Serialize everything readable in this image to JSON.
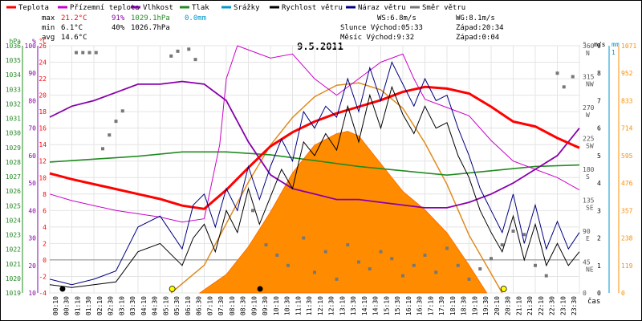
{
  "chart_data": {
    "type": "line",
    "title": "9.5.2011",
    "legend": [
      {
        "name": "Teplota",
        "color": "#ff0000"
      },
      {
        "name": "Přízemní teplota",
        "color": "#cc00cc"
      },
      {
        "name": "Vlhkost",
        "color": "#8800aa"
      },
      {
        "name": "Tlak",
        "color": "#228b22"
      },
      {
        "name": "Srážky",
        "color": "#0099cc"
      },
      {
        "name": "Rychlost větru",
        "color": "#000000"
      },
      {
        "name": "Náraz větru",
        "color": "#000080"
      },
      {
        "name": "Směr větru",
        "color": "#777777"
      }
    ],
    "stats": {
      "max": {
        "label": "max",
        "temp": "21.2°C",
        "hum": "91%",
        "press": "1029.1hPa",
        "rain": "0.0mm"
      },
      "min": {
        "label": "min",
        "temp": "6.1°C",
        "hum": "40%",
        "press": "1026.7hPa"
      },
      "avg": {
        "label": "avg",
        "temp": "14.6°C"
      }
    },
    "wind_info": {
      "ws": "WS:6.8m/s",
      "wg": "WG:8.1m/s",
      "sun_rise": "Slunce Východ:05:33",
      "sun_set": "Západ:20:34",
      "moon_rise": "Měsíc Východ:9:32",
      "moon_set": "Západ:0:04"
    },
    "axes": {
      "hpa": {
        "unit": "hPa",
        "ticks": [
          "1036",
          "1035",
          "1034",
          "1033",
          "1032",
          "1031",
          "1030",
          "1029",
          "1028",
          "1027",
          "1026",
          "1025",
          "1024",
          "1023",
          "1022",
          "1021",
          "1020",
          "1019"
        ]
      },
      "pct": {
        "unit": "%",
        "ticks": [
          "100",
          "90",
          "80",
          "70",
          "60",
          "50",
          "40",
          "30",
          "20",
          "10"
        ]
      },
      "degc": {
        "unit": "°C",
        "ticks": [
          "26",
          "24",
          "22",
          "20",
          "18",
          "16",
          "14",
          "12",
          "10",
          "8",
          "6",
          "4",
          "2",
          "0",
          "-2",
          "-4"
        ]
      },
      "dir": {
        "unit": "°",
        "ticks": [
          {
            "deg": "360",
            "card": "N"
          },
          {
            "deg": "315",
            "card": "NW"
          },
          {
            "deg": "270",
            "card": "W"
          },
          {
            "deg": "225",
            "card": "SW"
          },
          {
            "deg": "180",
            "card": "S"
          },
          {
            "deg": "135",
            "card": "SE"
          },
          {
            "deg": "90",
            "card": "E"
          },
          {
            "deg": "45",
            "card": "NE"
          },
          {
            "deg": "0",
            "card": ""
          }
        ]
      },
      "ms": {
        "unit": "m/s",
        "ticks": [
          "9",
          "8",
          "7",
          "6",
          "5",
          "4",
          "3",
          "2",
          "1",
          "0"
        ]
      },
      "mm": {
        "unit": "mm",
        "ticks": [
          "1"
        ]
      },
      "lux": {
        "ticks": [
          "1071",
          "952",
          "833",
          "714",
          "595",
          "476",
          "357",
          "238",
          "119",
          "0"
        ]
      },
      "time": {
        "label": "čas",
        "ticks": [
          "00:10",
          "00:30",
          "01:10",
          "01:30",
          "02:10",
          "02:30",
          "03:10",
          "03:30",
          "04:10",
          "04:30",
          "05:10",
          "05:30",
          "06:10",
          "06:30",
          "07:10",
          "07:30",
          "08:10",
          "08:30",
          "09:10",
          "09:30",
          "10:10",
          "10:30",
          "11:10",
          "11:30",
          "12:10",
          "12:30",
          "13:10",
          "13:30",
          "14:10",
          "14:30",
          "15:10",
          "15:30",
          "16:10",
          "16:30",
          "17:10",
          "17:30",
          "18:10",
          "18:30",
          "19:10",
          "19:30",
          "20:10",
          "20:30",
          "21:10",
          "21:30",
          "22:10",
          "22:30",
          "23:10",
          "23:30"
        ]
      }
    },
    "series": [
      {
        "name": "Teplota",
        "unit": "°C",
        "x": [
          0,
          1,
          2,
          3,
          4,
          5,
          6,
          7,
          8,
          9,
          10,
          11,
          12,
          13,
          14,
          15,
          16,
          17,
          18,
          19,
          20,
          21,
          22,
          23,
          24
        ],
        "values": [
          10.5,
          9.8,
          9.2,
          8.6,
          8.0,
          7.4,
          6.6,
          6.2,
          8.5,
          11.2,
          13.8,
          15.5,
          16.8,
          17.8,
          18.6,
          19.4,
          20.4,
          21.0,
          20.8,
          20.2,
          18.6,
          16.8,
          16.2,
          14.8,
          13.6
        ]
      },
      {
        "name": "Přízemní teplota",
        "unit": "°C",
        "x": [
          0,
          1,
          2,
          3,
          4,
          5,
          6,
          7,
          7.7,
          8,
          8.5,
          9,
          10,
          11,
          12,
          13,
          14,
          15,
          16,
          16.5,
          17,
          18,
          19,
          20,
          21,
          22,
          23,
          24
        ],
        "values": [
          8.0,
          7.2,
          6.6,
          6.0,
          5.6,
          5.2,
          4.6,
          5.0,
          14.0,
          22.0,
          26.0,
          25.5,
          24.5,
          25.0,
          22.0,
          20.0,
          22.0,
          24.0,
          25.0,
          22.0,
          19.5,
          18.5,
          17.5,
          14.5,
          12.0,
          11.0,
          10.0,
          8.5
        ]
      },
      {
        "name": "Vlhkost",
        "unit": "%",
        "x": [
          0,
          1,
          2,
          3,
          4,
          5,
          6,
          7,
          8,
          9,
          10,
          11,
          12,
          13,
          14,
          15,
          16,
          17,
          18,
          19,
          20,
          21,
          22,
          23,
          24
        ],
        "values": [
          74,
          78,
          80,
          83,
          86,
          86,
          87,
          86,
          80,
          65,
          53,
          48,
          46,
          44,
          44,
          43,
          42,
          41,
          41,
          43,
          46,
          50,
          55,
          60,
          70
        ]
      },
      {
        "name": "Tlak",
        "unit": "hPa",
        "x": [
          0,
          2,
          4,
          6,
          8,
          10,
          12,
          14,
          16,
          18,
          20,
          22,
          24
        ],
        "values": [
          1028.0,
          1028.2,
          1028.4,
          1028.7,
          1028.7,
          1028.5,
          1028.1,
          1027.7,
          1027.4,
          1027.1,
          1027.4,
          1027.7,
          1027.8
        ]
      },
      {
        "name": "Rychlost větru",
        "unit": "m/s",
        "x": [
          0,
          1,
          2,
          3,
          4,
          5,
          6,
          6.5,
          7,
          7.5,
          8,
          8.5,
          9,
          9.5,
          10,
          10.5,
          11,
          11.5,
          12,
          12.5,
          13,
          13.5,
          14,
          14.5,
          15,
          15.5,
          16,
          16.5,
          17,
          17.5,
          18,
          18.5,
          19,
          19.5,
          20,
          20.5,
          21,
          21.5,
          22,
          22.5,
          23,
          23.5,
          24
        ],
        "values": [
          0.3,
          0.2,
          0.3,
          0.4,
          1.5,
          1.8,
          1.0,
          2.0,
          2.5,
          1.5,
          3.0,
          2.2,
          3.8,
          2.5,
          3.5,
          4.5,
          3.8,
          5.5,
          5.0,
          5.8,
          5.2,
          6.8,
          5.5,
          7.2,
          6.0,
          7.5,
          6.5,
          5.8,
          6.8,
          6.0,
          6.2,
          5.0,
          4.2,
          3.0,
          2.2,
          1.5,
          2.8,
          1.2,
          2.5,
          1.0,
          1.8,
          1.0,
          1.5
        ]
      },
      {
        "name": "Náraz větru",
        "unit": "m/s",
        "x": [
          0,
          1,
          2,
          3,
          4,
          5,
          6,
          6.5,
          7,
          7.5,
          8,
          8.5,
          9,
          9.5,
          10,
          10.5,
          11,
          11.5,
          12,
          12.5,
          13,
          13.5,
          14,
          14.5,
          15,
          15.5,
          16,
          16.5,
          17,
          17.5,
          18,
          18.5,
          19,
          19.5,
          20,
          20.5,
          21,
          21.5,
          22,
          22.5,
          23,
          23.5,
          24
        ],
        "values": [
          0.5,
          0.3,
          0.5,
          0.8,
          2.4,
          2.8,
          1.6,
          3.2,
          3.6,
          2.4,
          3.8,
          3.0,
          4.6,
          3.4,
          4.6,
          5.6,
          4.8,
          6.6,
          6.0,
          6.8,
          6.4,
          7.8,
          6.6,
          8.2,
          7.0,
          8.4,
          7.6,
          6.8,
          7.8,
          7.0,
          7.2,
          6.0,
          5.0,
          3.8,
          3.0,
          2.2,
          3.6,
          1.8,
          3.2,
          1.6,
          2.6,
          1.6,
          2.2
        ]
      },
      {
        "name": "Směr větru",
        "unit": "°",
        "x": [
          1.2,
          1.5,
          1.8,
          2.1,
          2.4,
          2.7,
          3.0,
          3.3,
          5.5,
          5.8,
          6.3,
          6.6,
          9.2,
          9.8,
          10.3,
          10.8,
          11.5,
          12,
          12.5,
          13,
          13.5,
          14,
          14.5,
          15,
          15.5,
          16,
          16.5,
          17,
          17.5,
          18,
          18.5,
          19,
          19.5,
          20,
          20.5,
          21,
          21.5,
          22,
          22.5,
          23,
          23.3,
          23.7
        ],
        "values": [
          350,
          350,
          350,
          350,
          210,
          230,
          250,
          265,
          345,
          352,
          355,
          340,
          120,
          70,
          55,
          40,
          80,
          30,
          60,
          20,
          70,
          45,
          35,
          60,
          50,
          25,
          40,
          55,
          30,
          65,
          40,
          20,
          35,
          50,
          70,
          90,
          85,
          40,
          25,
          320,
          300,
          315
        ]
      },
      {
        "name": "Sluneční svit",
        "x": [
          6.8,
          8,
          9,
          10,
          11,
          12,
          13,
          13.5,
          14,
          15,
          16,
          17,
          18,
          19,
          19.8
        ],
        "values": [
          0,
          80,
          200,
          350,
          520,
          640,
          690,
          700,
          680,
          560,
          440,
          360,
          260,
          120,
          0
        ]
      },
      {
        "name": "Teoretické záření",
        "x": [
          5.5,
          7,
          8,
          9,
          10,
          11,
          12,
          13,
          14,
          15,
          16,
          17,
          18,
          19,
          20.5
        ],
        "values": [
          0,
          120,
          300,
          480,
          640,
          760,
          850,
          900,
          910,
          880,
          800,
          650,
          470,
          250,
          0
        ]
      }
    ],
    "markers": {
      "sunrise": 5.55,
      "sunset": 20.57,
      "moonrise": 9.53,
      "moonset": 0.07
    },
    "ranges": {
      "time": [
        0,
        24
      ],
      "temp": [
        -4,
        26
      ],
      "hum": [
        10,
        100
      ],
      "press": [
        1019,
        1036
      ],
      "wind": [
        0,
        9
      ],
      "dir": [
        0,
        360
      ],
      "lux": [
        0,
        1071
      ]
    }
  }
}
